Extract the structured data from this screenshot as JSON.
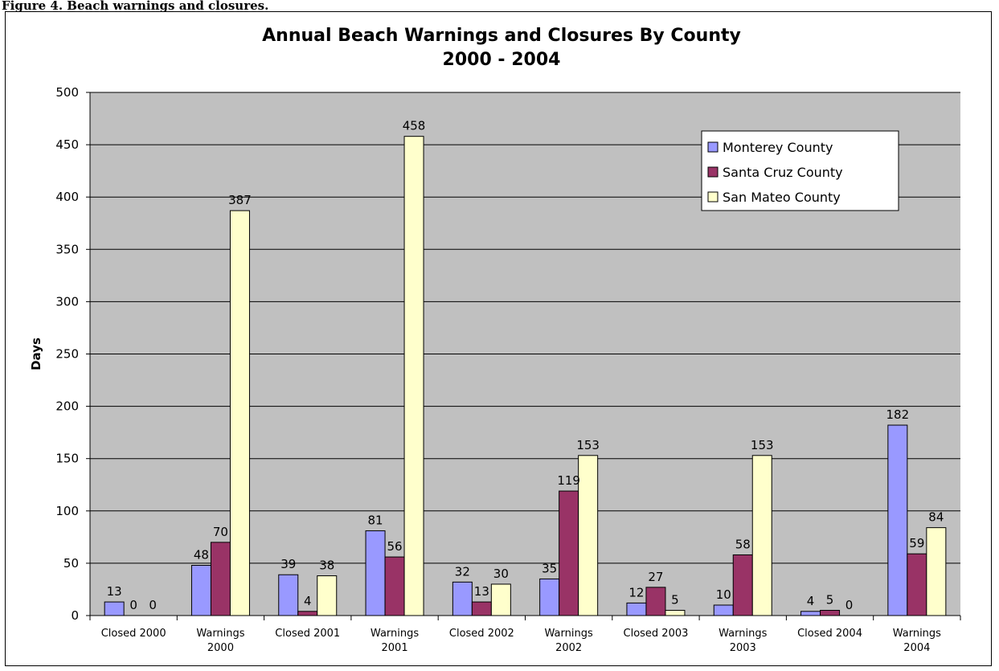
{
  "caption": "Figure 4. Beach warnings and closures.",
  "chart_data": {
    "type": "bar",
    "title": "Annual Beach Warnings and Closures By County",
    "subtitle": "2000 - 2004",
    "xlabel": "",
    "ylabel": "Days",
    "ylim": [
      0,
      500
    ],
    "yticks": [
      0,
      50,
      100,
      150,
      200,
      250,
      300,
      350,
      400,
      450,
      500
    ],
    "grid": true,
    "legend_position": "top-right",
    "categories": [
      [
        "Closed 2000"
      ],
      [
        "Warnings",
        "2000"
      ],
      [
        "Closed 2001"
      ],
      [
        "Warnings",
        "2001"
      ],
      [
        "Closed 2002"
      ],
      [
        "Warnings",
        "2002"
      ],
      [
        "Closed 2003"
      ],
      [
        "Warnings",
        "2003"
      ],
      [
        "Closed 2004"
      ],
      [
        "Warnings",
        "2004"
      ]
    ],
    "series": [
      {
        "name": "Monterey County",
        "color": "#9999ff",
        "values": [
          13,
          48,
          39,
          81,
          32,
          35,
          12,
          10,
          4,
          182
        ]
      },
      {
        "name": "Santa Cruz County",
        "color": "#993366",
        "values": [
          0,
          70,
          4,
          56,
          13,
          119,
          27,
          58,
          5,
          59
        ]
      },
      {
        "name": "San Mateo County",
        "color": "#ffffcc",
        "values": [
          0,
          387,
          38,
          458,
          30,
          153,
          5,
          153,
          0,
          84
        ]
      }
    ]
  },
  "colors": {
    "plot_background": "#c0c0c0",
    "gridline": "#000000"
  }
}
